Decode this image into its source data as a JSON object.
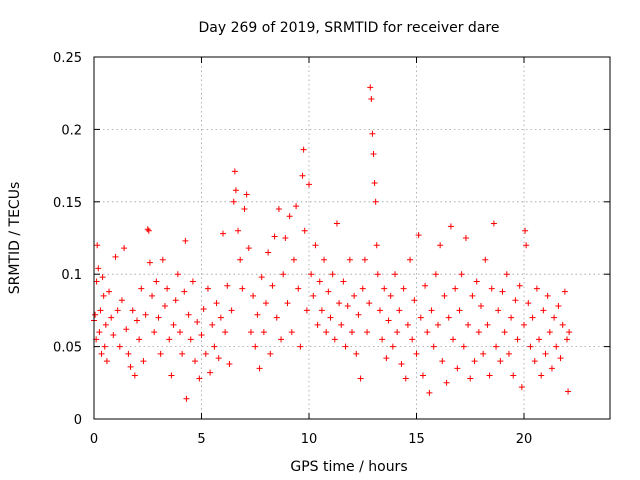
{
  "chart_data": {
    "type": "scatter",
    "title": "Day 269 of 2019, SRMTID for receiver dare",
    "xlabel": "GPS time / hours",
    "ylabel": "SRMTID / TECUs",
    "xlim": [
      0,
      24
    ],
    "ylim": [
      0,
      0.25
    ],
    "xticks": [
      0,
      5,
      10,
      15,
      20
    ],
    "xtick_labels": [
      "0",
      "5",
      "10",
      "15",
      "20"
    ],
    "yticks": [
      0,
      0.05,
      0.1,
      0.15,
      0.2,
      0.25
    ],
    "ytick_labels": [
      "0",
      "0.05",
      "0.1",
      "0.15",
      "0.2",
      "0.25"
    ],
    "grid": true,
    "marker": "plus",
    "series": [
      {
        "name": "SRMTID",
        "color": "#ff0000",
        "points": [
          [
            0.0,
            0.068
          ],
          [
            0.05,
            0.072
          ],
          [
            0.1,
            0.055
          ],
          [
            0.12,
            0.095
          ],
          [
            0.15,
            0.12
          ],
          [
            0.2,
            0.104
          ],
          [
            0.25,
            0.06
          ],
          [
            0.3,
            0.075
          ],
          [
            0.35,
            0.045
          ],
          [
            0.4,
            0.098
          ],
          [
            0.45,
            0.085
          ],
          [
            0.5,
            0.05
          ],
          [
            0.55,
            0.065
          ],
          [
            0.6,
            0.04
          ],
          [
            0.7,
            0.088
          ],
          [
            0.8,
            0.07
          ],
          [
            0.9,
            0.058
          ],
          [
            1.0,
            0.112
          ],
          [
            1.1,
            0.075
          ],
          [
            1.2,
            0.05
          ],
          [
            1.3,
            0.082
          ],
          [
            1.4,
            0.118
          ],
          [
            1.5,
            0.062
          ],
          [
            1.6,
            0.045
          ],
          [
            1.7,
            0.036
          ],
          [
            1.8,
            0.075
          ],
          [
            1.9,
            0.03
          ],
          [
            2.0,
            0.068
          ],
          [
            2.1,
            0.055
          ],
          [
            2.2,
            0.09
          ],
          [
            2.3,
            0.04
          ],
          [
            2.4,
            0.072
          ],
          [
            2.5,
            0.131
          ],
          [
            2.55,
            0.13
          ],
          [
            2.6,
            0.108
          ],
          [
            2.7,
            0.085
          ],
          [
            2.8,
            0.06
          ],
          [
            2.9,
            0.095
          ],
          [
            3.0,
            0.07
          ],
          [
            3.1,
            0.045
          ],
          [
            3.2,
            0.11
          ],
          [
            3.3,
            0.078
          ],
          [
            3.4,
            0.09
          ],
          [
            3.5,
            0.055
          ],
          [
            3.6,
            0.03
          ],
          [
            3.7,
            0.065
          ],
          [
            3.8,
            0.082
          ],
          [
            3.9,
            0.1
          ],
          [
            4.0,
            0.06
          ],
          [
            4.1,
            0.045
          ],
          [
            4.2,
            0.088
          ],
          [
            4.25,
            0.123
          ],
          [
            4.3,
            0.014
          ],
          [
            4.4,
            0.072
          ],
          [
            4.5,
            0.055
          ],
          [
            4.6,
            0.095
          ],
          [
            4.7,
            0.04
          ],
          [
            4.8,
            0.067
          ],
          [
            4.9,
            0.028
          ],
          [
            5.0,
            0.058
          ],
          [
            5.1,
            0.076
          ],
          [
            5.2,
            0.045
          ],
          [
            5.3,
            0.09
          ],
          [
            5.4,
            0.032
          ],
          [
            5.5,
            0.065
          ],
          [
            5.6,
            0.05
          ],
          [
            5.7,
            0.08
          ],
          [
            5.8,
            0.042
          ],
          [
            5.9,
            0.07
          ],
          [
            6.0,
            0.128
          ],
          [
            6.1,
            0.06
          ],
          [
            6.2,
            0.092
          ],
          [
            6.3,
            0.038
          ],
          [
            6.4,
            0.075
          ],
          [
            6.5,
            0.15
          ],
          [
            6.55,
            0.171
          ],
          [
            6.6,
            0.158
          ],
          [
            6.7,
            0.13
          ],
          [
            6.8,
            0.11
          ],
          [
            6.9,
            0.09
          ],
          [
            7.0,
            0.145
          ],
          [
            7.1,
            0.155
          ],
          [
            7.2,
            0.118
          ],
          [
            7.3,
            0.06
          ],
          [
            7.4,
            0.085
          ],
          [
            7.5,
            0.05
          ],
          [
            7.6,
            0.072
          ],
          [
            7.7,
            0.035
          ],
          [
            7.8,
            0.098
          ],
          [
            7.9,
            0.06
          ],
          [
            8.0,
            0.08
          ],
          [
            8.1,
            0.115
          ],
          [
            8.2,
            0.045
          ],
          [
            8.3,
            0.092
          ],
          [
            8.4,
            0.126
          ],
          [
            8.5,
            0.07
          ],
          [
            8.6,
            0.145
          ],
          [
            8.7,
            0.055
          ],
          [
            8.8,
            0.1
          ],
          [
            8.9,
            0.125
          ],
          [
            9.0,
            0.08
          ],
          [
            9.1,
            0.14
          ],
          [
            9.2,
            0.06
          ],
          [
            9.3,
            0.11
          ],
          [
            9.4,
            0.147
          ],
          [
            9.5,
            0.09
          ],
          [
            9.6,
            0.05
          ],
          [
            9.7,
            0.168
          ],
          [
            9.75,
            0.186
          ],
          [
            9.8,
            0.13
          ],
          [
            9.9,
            0.075
          ],
          [
            10.0,
            0.162
          ],
          [
            10.1,
            0.1
          ],
          [
            10.2,
            0.085
          ],
          [
            10.3,
            0.12
          ],
          [
            10.4,
            0.065
          ],
          [
            10.5,
            0.095
          ],
          [
            10.6,
            0.075
          ],
          [
            10.7,
            0.11
          ],
          [
            10.8,
            0.06
          ],
          [
            10.9,
            0.088
          ],
          [
            11.0,
            0.07
          ],
          [
            11.1,
            0.1
          ],
          [
            11.2,
            0.055
          ],
          [
            11.3,
            0.135
          ],
          [
            11.4,
            0.08
          ],
          [
            11.5,
            0.065
          ],
          [
            11.6,
            0.095
          ],
          [
            11.7,
            0.05
          ],
          [
            11.8,
            0.078
          ],
          [
            11.9,
            0.11
          ],
          [
            12.0,
            0.06
          ],
          [
            12.1,
            0.085
          ],
          [
            12.2,
            0.045
          ],
          [
            12.3,
            0.072
          ],
          [
            12.4,
            0.028
          ],
          [
            12.5,
            0.09
          ],
          [
            12.6,
            0.11
          ],
          [
            12.7,
            0.06
          ],
          [
            12.8,
            0.08
          ],
          [
            12.85,
            0.229
          ],
          [
            12.9,
            0.221
          ],
          [
            12.95,
            0.197
          ],
          [
            13.0,
            0.183
          ],
          [
            13.05,
            0.163
          ],
          [
            13.1,
            0.15
          ],
          [
            13.15,
            0.12
          ],
          [
            13.2,
            0.1
          ],
          [
            13.3,
            0.075
          ],
          [
            13.4,
            0.055
          ],
          [
            13.5,
            0.09
          ],
          [
            13.6,
            0.042
          ],
          [
            13.7,
            0.068
          ],
          [
            13.8,
            0.085
          ],
          [
            13.9,
            0.05
          ],
          [
            14.0,
            0.1
          ],
          [
            14.1,
            0.06
          ],
          [
            14.2,
            0.075
          ],
          [
            14.3,
            0.038
          ],
          [
            14.4,
            0.09
          ],
          [
            14.5,
            0.028
          ],
          [
            14.6,
            0.065
          ],
          [
            14.7,
            0.11
          ],
          [
            14.8,
            0.055
          ],
          [
            14.9,
            0.082
          ],
          [
            15.0,
            0.045
          ],
          [
            15.1,
            0.127
          ],
          [
            15.2,
            0.07
          ],
          [
            15.3,
            0.03
          ],
          [
            15.4,
            0.092
          ],
          [
            15.5,
            0.06
          ],
          [
            15.6,
            0.018
          ],
          [
            15.7,
            0.075
          ],
          [
            15.8,
            0.05
          ],
          [
            15.9,
            0.1
          ],
          [
            16.0,
            0.065
          ],
          [
            16.1,
            0.12
          ],
          [
            16.2,
            0.04
          ],
          [
            16.3,
            0.085
          ],
          [
            16.4,
            0.025
          ],
          [
            16.5,
            0.07
          ],
          [
            16.6,
            0.133
          ],
          [
            16.7,
            0.055
          ],
          [
            16.8,
            0.09
          ],
          [
            16.9,
            0.035
          ],
          [
            17.0,
            0.075
          ],
          [
            17.1,
            0.1
          ],
          [
            17.2,
            0.05
          ],
          [
            17.3,
            0.125
          ],
          [
            17.4,
            0.065
          ],
          [
            17.5,
            0.028
          ],
          [
            17.6,
            0.085
          ],
          [
            17.7,
            0.04
          ],
          [
            17.8,
            0.095
          ],
          [
            17.9,
            0.06
          ],
          [
            18.0,
            0.078
          ],
          [
            18.1,
            0.045
          ],
          [
            18.2,
            0.11
          ],
          [
            18.3,
            0.065
          ],
          [
            18.4,
            0.03
          ],
          [
            18.5,
            0.09
          ],
          [
            18.6,
            0.135
          ],
          [
            18.7,
            0.05
          ],
          [
            18.8,
            0.075
          ],
          [
            18.9,
            0.04
          ],
          [
            19.0,
            0.088
          ],
          [
            19.1,
            0.06
          ],
          [
            19.2,
            0.1
          ],
          [
            19.3,
            0.045
          ],
          [
            19.4,
            0.07
          ],
          [
            19.5,
            0.03
          ],
          [
            19.6,
            0.082
          ],
          [
            19.7,
            0.055
          ],
          [
            19.8,
            0.092
          ],
          [
            19.9,
            0.022
          ],
          [
            20.0,
            0.065
          ],
          [
            20.05,
            0.13
          ],
          [
            20.1,
            0.12
          ],
          [
            20.2,
            0.08
          ],
          [
            20.3,
            0.05
          ],
          [
            20.4,
            0.07
          ],
          [
            20.5,
            0.04
          ],
          [
            20.6,
            0.09
          ],
          [
            20.7,
            0.055
          ],
          [
            20.8,
            0.03
          ],
          [
            20.9,
            0.075
          ],
          [
            21.0,
            0.045
          ],
          [
            21.1,
            0.085
          ],
          [
            21.2,
            0.06
          ],
          [
            21.3,
            0.035
          ],
          [
            21.4,
            0.07
          ],
          [
            21.5,
            0.05
          ],
          [
            21.6,
            0.078
          ],
          [
            21.7,
            0.042
          ],
          [
            21.8,
            0.065
          ],
          [
            21.9,
            0.088
          ],
          [
            22.0,
            0.055
          ],
          [
            22.05,
            0.019
          ],
          [
            22.1,
            0.06
          ]
        ]
      }
    ]
  }
}
